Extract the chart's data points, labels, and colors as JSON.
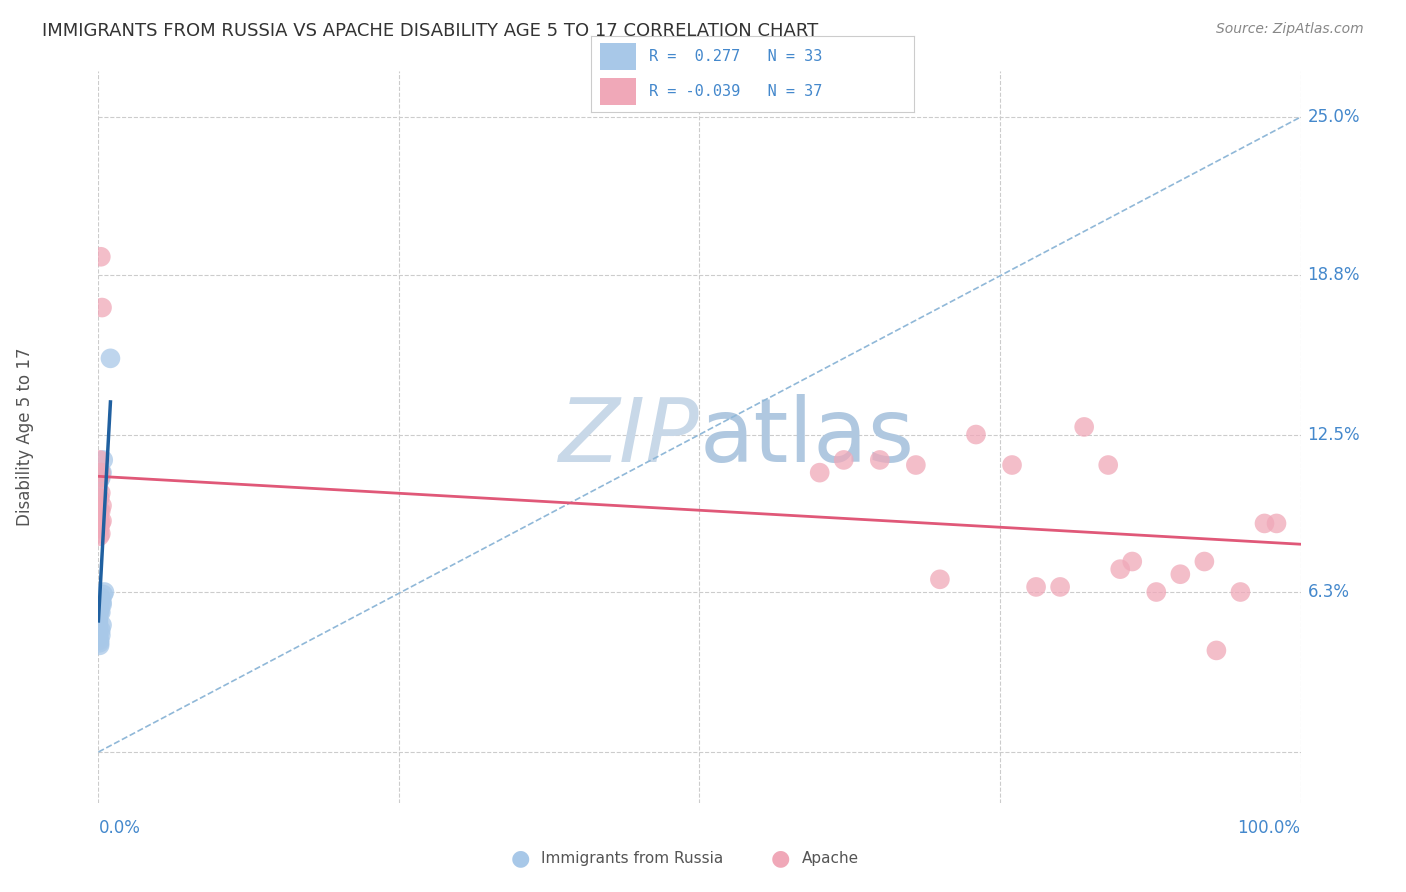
{
  "title": "IMMIGRANTS FROM RUSSIA VS APACHE DISABILITY AGE 5 TO 17 CORRELATION CHART",
  "source": "Source: ZipAtlas.com",
  "ylabel": "Disability Age 5 to 17",
  "blue_color": "#a8c8e8",
  "pink_color": "#f0a8b8",
  "trend_blue_color": "#2060a0",
  "trend_pink_color": "#e05878",
  "dashed_line_color": "#90b8d8",
  "background_color": "#ffffff",
  "grid_color": "#cccccc",
  "label_color": "#4488cc",
  "title_color": "#333333",
  "source_color": "#888888",
  "legend_r1_text": "R =  0.277   N = 33",
  "legend_r2_text": "R = -0.039   N = 37",
  "xlim": [
    0.0,
    1.0
  ],
  "ylim": [
    -0.02,
    0.268
  ],
  "ytick_positions": [
    0.0,
    0.063,
    0.125,
    0.188,
    0.25
  ],
  "ytick_labels": [
    "",
    "6.3%",
    "12.5%",
    "18.8%",
    "25.0%"
  ],
  "blue_x": [
    0.0,
    0.0,
    0.0,
    0.0,
    0.0,
    0.0,
    0.0,
    0.0,
    0.001,
    0.001,
    0.001,
    0.001,
    0.001,
    0.001,
    0.001,
    0.002,
    0.002,
    0.002,
    0.002,
    0.002,
    0.003,
    0.003,
    0.003,
    0.004,
    0.005,
    0.001,
    0.001,
    0.001,
    0.002,
    0.002,
    0.003,
    0.004,
    0.01
  ],
  "blue_y": [
    0.045,
    0.047,
    0.048,
    0.049,
    0.05,
    0.051,
    0.052,
    0.053,
    0.042,
    0.043,
    0.044,
    0.055,
    0.056,
    0.057,
    0.058,
    0.046,
    0.048,
    0.055,
    0.06,
    0.061,
    0.05,
    0.058,
    0.059,
    0.062,
    0.063,
    0.095,
    0.1,
    0.107,
    0.108,
    0.11,
    0.11,
    0.115,
    0.155
  ],
  "pink_x": [
    0.001,
    0.001,
    0.001,
    0.001,
    0.001,
    0.002,
    0.002,
    0.002,
    0.003,
    0.003,
    0.001,
    0.002,
    0.001,
    0.002,
    0.001,
    0.002,
    0.003,
    0.6,
    0.62,
    0.65,
    0.68,
    0.7,
    0.73,
    0.76,
    0.78,
    0.8,
    0.82,
    0.84,
    0.85,
    0.86,
    0.88,
    0.9,
    0.92,
    0.93,
    0.95,
    0.97,
    0.98
  ],
  "pink_y": [
    0.085,
    0.088,
    0.09,
    0.092,
    0.095,
    0.086,
    0.09,
    0.095,
    0.091,
    0.097,
    0.1,
    0.102,
    0.108,
    0.11,
    0.115,
    0.195,
    0.175,
    0.11,
    0.115,
    0.115,
    0.113,
    0.068,
    0.125,
    0.113,
    0.065,
    0.065,
    0.128,
    0.113,
    0.072,
    0.075,
    0.063,
    0.07,
    0.075,
    0.04,
    0.063,
    0.09,
    0.09
  ]
}
